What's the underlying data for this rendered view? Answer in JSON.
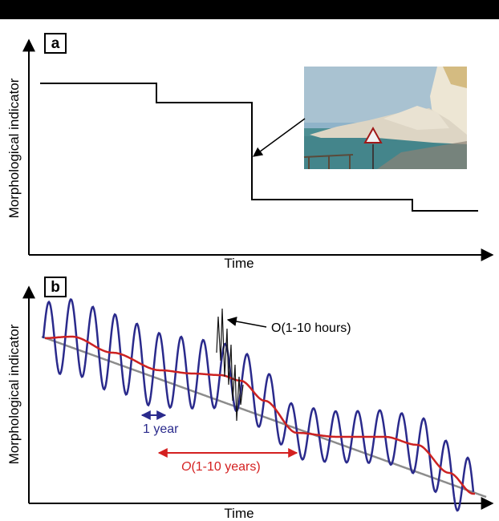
{
  "colors": {
    "background": "#ffffff",
    "top_bar": "#000000",
    "axis": "#000000",
    "step_line": "#000000",
    "oscillation": "#2a2a8c",
    "smoothed": "#cc2222",
    "trend": "#8c8c8c",
    "storm_spikes": "#111111",
    "year_marker": "#2a2a8c",
    "decade_marker": "#d42020"
  },
  "panel_a": {
    "label": "a",
    "ylabel": "Morphological indicator",
    "xlabel": "Time",
    "photo": {
      "description_icon": "cliff-collapse-photo",
      "sky": "#8fb3c9",
      "sea": "#4c8e93",
      "cliff": "#e8e0cc",
      "rubble": "#d9d2c2"
    }
  },
  "panel_b": {
    "label": "b",
    "ylabel": "Morphological indicator",
    "xlabel": "Time",
    "annotation_storm": "O(1-10 hours)",
    "annotation_year": "1 year",
    "annotation_decade_italic": "O",
    "annotation_decade_rest": "(1-10 years)"
  }
}
